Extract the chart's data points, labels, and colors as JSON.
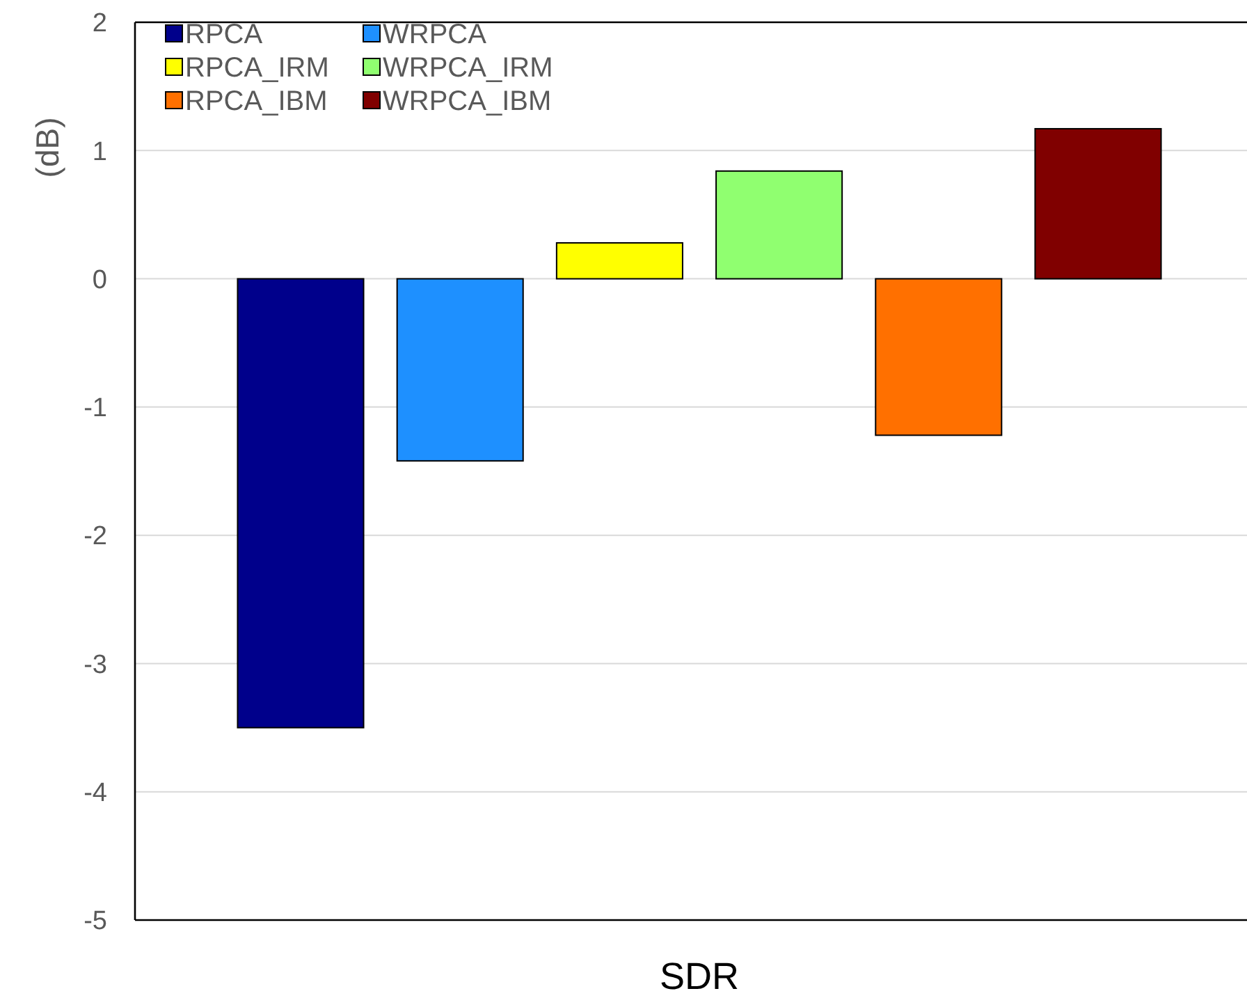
{
  "chart_data": {
    "type": "bar",
    "ylabel": "(dB)",
    "categories": [
      "SDR"
    ],
    "series": [
      {
        "name": "RPCA",
        "color": "#00008b",
        "values": [
          -3.5
        ]
      },
      {
        "name": "WRPCA",
        "color": "#1e90ff",
        "values": [
          -1.42
        ]
      },
      {
        "name": "RPCA_IRM",
        "color": "#ffff00",
        "values": [
          0.28
        ]
      },
      {
        "name": "WRPCA_IRM",
        "color": "#90ff70",
        "values": [
          0.84
        ]
      },
      {
        "name": "RPCA_IBM",
        "color": "#ff7000",
        "values": [
          -1.22
        ]
      },
      {
        "name": "WRPCA_IBM",
        "color": "#800000",
        "values": [
          1.17
        ]
      }
    ],
    "ylim": [
      -5,
      2
    ],
    "yticks": [
      -5,
      -4,
      -3,
      -2,
      -1,
      0,
      1,
      2
    ],
    "grid": "y",
    "legend": "top left"
  }
}
